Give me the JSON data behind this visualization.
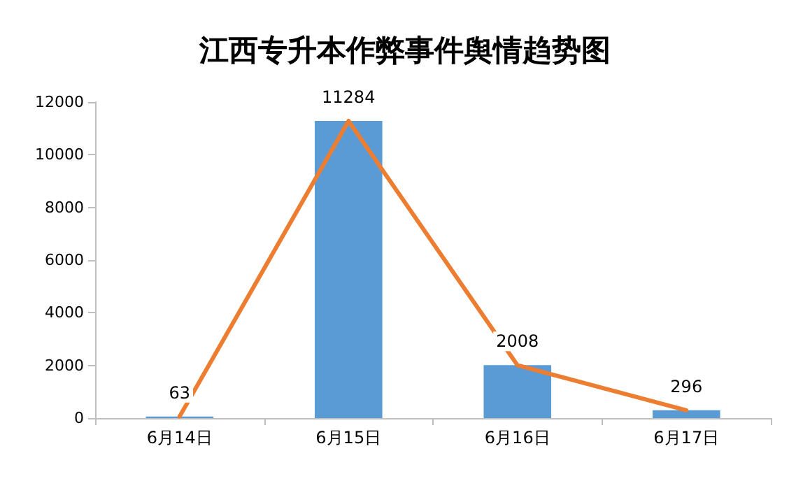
{
  "chart_data": {
    "type": "bar",
    "title": "江西专升本作弊事件舆情趋势图",
    "categories": [
      "6月14日",
      "6月15日",
      "6月16日",
      "6月17日"
    ],
    "series": [
      {
        "color": "#5b9bd5",
        "values": [
          63,
          11284,
          2008,
          296
        ]
      },
      {
        "type": "line",
        "color": "#ed7d31",
        "values": [
          63,
          11284,
          2008,
          296
        ],
        "value_labels": [
          "63",
          "11284",
          "2008",
          "296"
        ]
      }
    ],
    "ylim": [
      0,
      12000
    ],
    "yticks": [
      0,
      2000,
      4000,
      6000,
      8000,
      10000,
      12000
    ],
    "grid": false,
    "marker": "none"
  }
}
